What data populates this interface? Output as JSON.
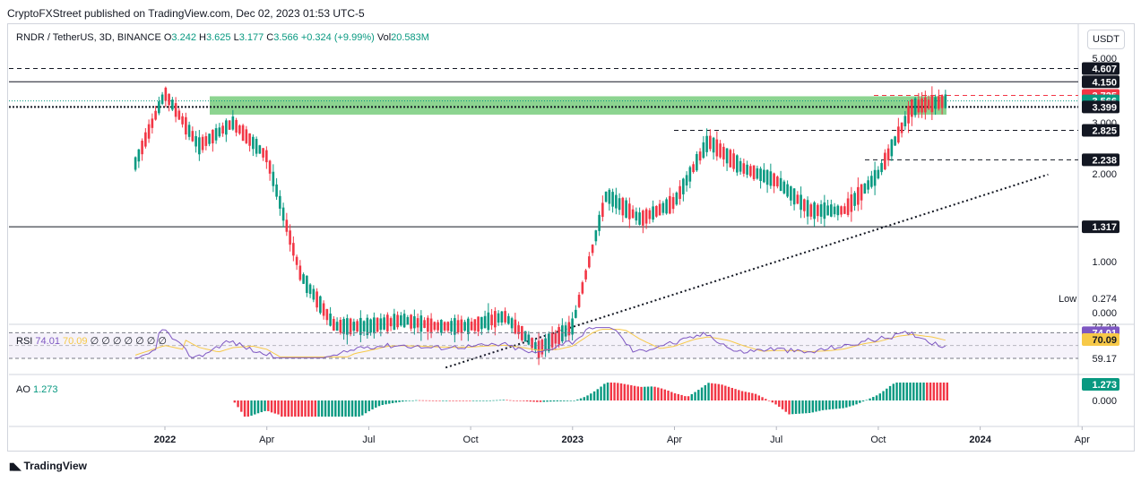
{
  "publisher": "CryptoFXStreet published on TradingView.com, Dec 02, 2023 01:53 UTC-5",
  "legend": {
    "symbol": "RNDR / TetherUS, 3D, BINANCE",
    "open_label": "O",
    "open": "3.242",
    "high_label": "H",
    "high": "3.625",
    "low_label": "L",
    "low": "3.177",
    "close_label": "C",
    "close": "3.566",
    "change": "+0.324 (+9.99%)",
    "vol_label": "Vol",
    "vol": "20.583M"
  },
  "currency_button": "USDT",
  "rsi_legend": {
    "label": "RSI",
    "value": "74.01",
    "ma": "70.09",
    "extra": "∅ ∅ ∅ ∅ ∅ ∅ ∅"
  },
  "ao_legend": {
    "label": "AO",
    "value": "1.273"
  },
  "branding": "TradingView",
  "colors": {
    "up": "#089981",
    "down": "#f23645",
    "zone": "#66c66b",
    "rsi": "#7e57c2",
    "rsi_ma": "#f7c948"
  },
  "chart_data": [
    {
      "type": "line",
      "subtype": "candlestick",
      "title": "RNDR / TetherUS, 3D, BINANCE",
      "x_axis_ticks": [
        "2022",
        "Apr",
        "Jul",
        "Oct",
        "2023",
        "Apr",
        "Jul",
        "Oct",
        "2024",
        "Apr"
      ],
      "y_axis_ticks": [
        "5.000",
        "3.000",
        "2.000",
        "1.000",
        "0.000"
      ],
      "y_scale": "log",
      "price_labels": [
        {
          "value": "4.607",
          "style": "dashed"
        },
        {
          "value": "4.150",
          "style": "solid"
        },
        {
          "value": "3.725",
          "style": "dashed-red"
        },
        {
          "value": "3.566",
          "style": "last-price"
        },
        {
          "value": "3.399",
          "style": "dotted"
        },
        {
          "value": "2.825",
          "style": "dashed"
        },
        {
          "value": "2.238",
          "style": "dashed"
        },
        {
          "value": "1.317",
          "style": "solid"
        }
      ],
      "low_marker": {
        "label": "Low",
        "value": "0.274"
      },
      "supply_zone": {
        "from": 3.2,
        "to": 3.7
      },
      "trendline": {
        "style": "dotted",
        "from": [
          "2022-09",
          0.72
        ],
        "to": [
          "2024-03",
          2.05
        ]
      },
      "series": [
        {
          "values": [
            [
              2021,
              12,
              2.0
            ],
            [
              2022,
              1,
              3.8
            ],
            [
              2022,
              2,
              2.5
            ],
            [
              2022,
              3,
              3.0
            ],
            [
              2022,
              4,
              2.3
            ],
            [
              2022,
              5,
              0.9
            ],
            [
              2022,
              6,
              0.6
            ],
            [
              2022,
              7,
              0.6
            ],
            [
              2022,
              8,
              0.63
            ],
            [
              2022,
              9,
              0.6
            ],
            [
              2022,
              10,
              0.6
            ],
            [
              2022,
              11,
              0.65
            ],
            [
              2022,
              12,
              0.5
            ],
            [
              2023,
              1,
              0.6
            ],
            [
              2023,
              2,
              1.7
            ],
            [
              2023,
              3,
              1.4
            ],
            [
              2023,
              4,
              1.6
            ],
            [
              2023,
              5,
              2.6
            ],
            [
              2023,
              6,
              2.1
            ],
            [
              2023,
              7,
              1.9
            ],
            [
              2023,
              8,
              1.5
            ],
            [
              2023,
              9,
              1.5
            ],
            [
              2023,
              10,
              2.0
            ],
            [
              2023,
              11,
              3.4
            ],
            [
              2023,
              12,
              3.566
            ]
          ]
        }
      ]
    },
    {
      "type": "line",
      "title": "RSI",
      "y_axis_ticks": [
        "77.33",
        "74.01",
        "70.09",
        "59.17"
      ],
      "series": [
        {
          "name": "RSI",
          "values": [
            74.01
          ]
        },
        {
          "name": "MA",
          "values": [
            70.09
          ]
        }
      ]
    },
    {
      "type": "bar",
      "title": "AO",
      "y_axis_ticks": [
        "1.273",
        "0.000"
      ],
      "series": [
        {
          "name": "AO",
          "values": [
            1.273
          ]
        }
      ]
    }
  ]
}
